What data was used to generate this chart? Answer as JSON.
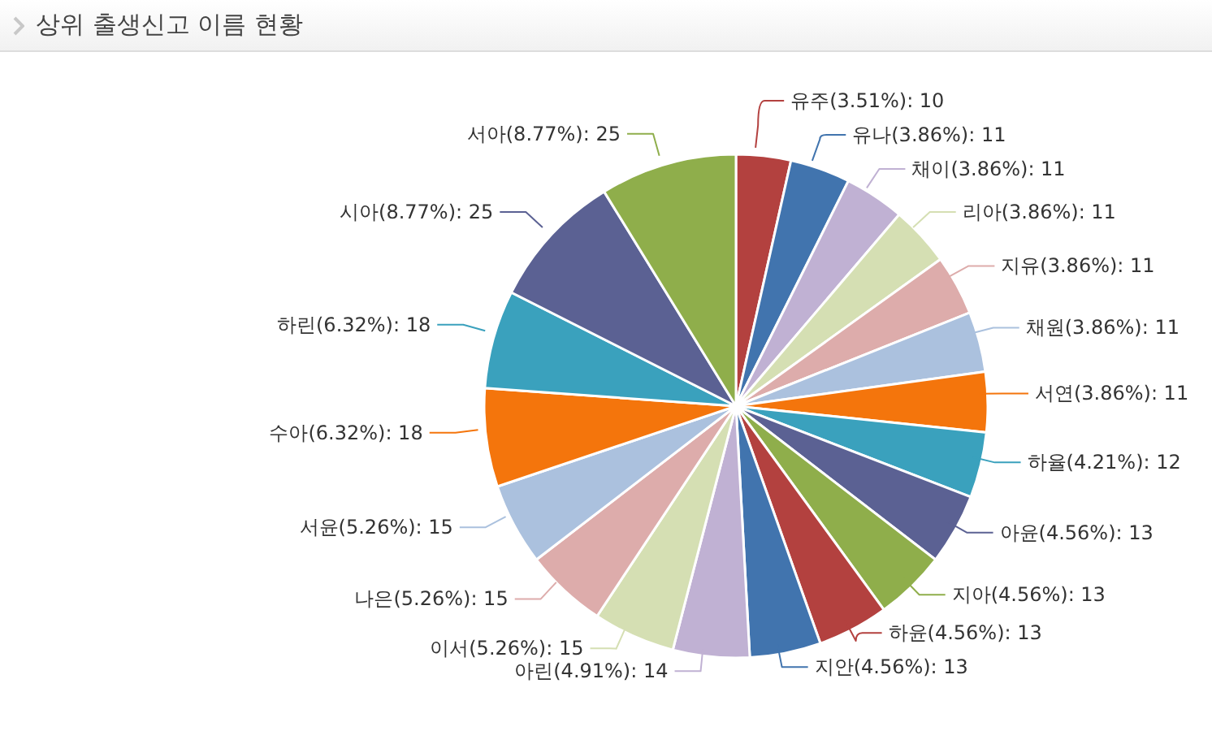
{
  "chart_data": {
    "type": "pie",
    "title": "상위 출생신고 이름 현황",
    "categories": [
      "유주",
      "유나",
      "채이",
      "리아",
      "지유",
      "채원",
      "서연",
      "하율",
      "아윤",
      "지아",
      "하윤",
      "지안",
      "아린",
      "이서",
      "나은",
      "서윤",
      "수아",
      "하린",
      "시아",
      "서아"
    ],
    "values": [
      10,
      11,
      11,
      11,
      11,
      11,
      11,
      12,
      13,
      13,
      13,
      13,
      14,
      15,
      15,
      15,
      18,
      18,
      25,
      25
    ],
    "value_labels": [
      "(3.51%): 10",
      "(3.86%): 11",
      "(3.86%): 11",
      "(3.86%): 11",
      "(3.86%): 11",
      "(3.86%): 11",
      "(3.86%): 11",
      "(4.21%): 12",
      "(4.56%): 13",
      "(4.56%): 13",
      "(4.56%): 13",
      "(4.56%): 13",
      "(4.91%): 14",
      "(5.26%): 15",
      "(5.26%): 15",
      "(5.26%): 15",
      "(6.32%): 18",
      "(6.32%): 18",
      "(8.77%): 25",
      "(8.77%): 25"
    ],
    "colors": [
      "#b3413f",
      "#4174ae",
      "#c0b1d3",
      "#d5dfb3",
      "#ddacab",
      "#abc1de",
      "#f4750c",
      "#3aa1bd",
      "#5b6193",
      "#8fae4b",
      "#b3413f",
      "#4174ae",
      "#c0b1d3",
      "#d5dfb3",
      "#ddacab",
      "#abc1de",
      "#f4750c",
      "#3aa1bd",
      "#5b6193",
      "#8fae4b"
    ]
  }
}
